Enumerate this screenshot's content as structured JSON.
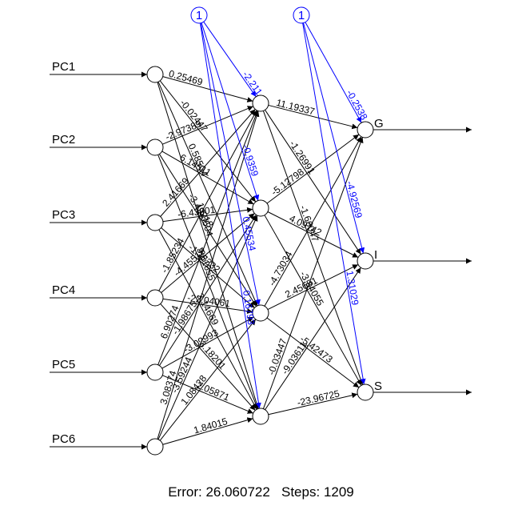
{
  "network": {
    "inputs": [
      "PC1",
      "PC2",
      "PC3",
      "PC4",
      "PC5",
      "PC6"
    ],
    "hidden_count": 4,
    "outputs": [
      "G",
      "I",
      "S"
    ],
    "bias_label": "1",
    "input_to_hidden_labels": [
      [
        "0.25469",
        "-0.02447",
        "0.58504",
        "1.58504"
      ],
      [
        "-2.97389",
        "6.14511",
        "-3.49218",
        "3.61655"
      ],
      [
        "2.41669",
        "-6.43001",
        "-1.75332",
        "3.14669"
      ],
      [
        "-1.85234",
        "-4.45518",
        "-22.04061",
        "-3.18201"
      ],
      [
        "6.90274",
        "-1.98675",
        "-3.02993",
        "2.05871"
      ],
      [
        "3.08374",
        "-3.59244",
        "1.08428",
        "1.84015"
      ]
    ],
    "hidden_to_output_labels": [
      [
        "11.19337",
        "-1.26991",
        "-1.66047"
      ],
      [
        "-5.12798",
        "4.09742",
        "-3.34055"
      ],
      [
        "-4.73034",
        "2.45651",
        "-5.42473"
      ],
      [
        "-0.03447",
        "-9.03611",
        "-23.96725"
      ]
    ],
    "bias_hidden_labels": [
      "-2.211",
      "-0.9359",
      "0.45534",
      "-0.16793"
    ],
    "bias_output_labels": [
      "-0.2538",
      "-4.92569",
      "1.31029"
    ],
    "colors": {
      "edges": "#000000",
      "bias_edges": "#0000ff",
      "background": "#ffffff"
    }
  },
  "footer": {
    "error_label": "Error:",
    "error_value": "26.060722",
    "steps_label": "Steps:",
    "steps_value": "1209"
  }
}
